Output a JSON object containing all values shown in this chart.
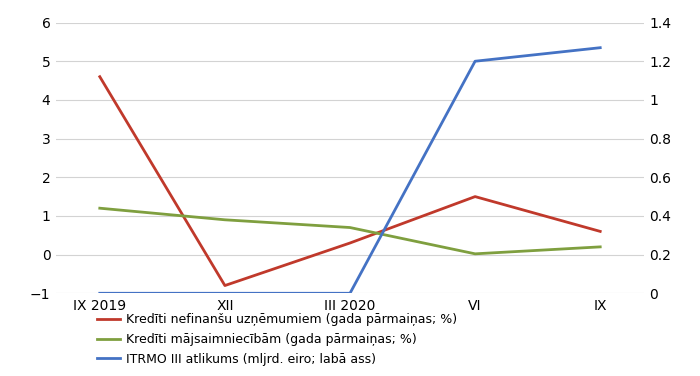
{
  "x_labels": [
    "IX 2019",
    "XII",
    "III 2020",
    "VI",
    "IX"
  ],
  "x_positions": [
    0,
    1,
    2,
    3,
    4
  ],
  "red_y": [
    4.6,
    -0.8,
    0.3,
    1.5,
    0.6
  ],
  "green_y": [
    1.2,
    0.9,
    0.7,
    0.02,
    0.2
  ],
  "blue_y_right": [
    0.0,
    0.0,
    0.0,
    1.2,
    1.27
  ],
  "red_color": "#c0392b",
  "green_color": "#7f9f3f",
  "blue_color": "#4472c4",
  "left_ylim": [
    -1,
    6
  ],
  "right_ylim": [
    0,
    1.4
  ],
  "left_yticks": [
    -1,
    0,
    1,
    2,
    3,
    4,
    5,
    6
  ],
  "right_ytick_vals": [
    0,
    0.2,
    0.4,
    0.6,
    0.8,
    1.0,
    1.2,
    1.4
  ],
  "right_ytick_labels": [
    "0",
    "0.2",
    "0.4",
    "0.6",
    "0.8",
    "1",
    "1.2",
    "1.4"
  ],
  "legend_red": "Kredīti nefinanšu uzņēmumiem (gada pārmaiņas; %)",
  "legend_green": "Kredīti mājsaimniecībām (gada pārmaiņas; %)",
  "legend_blue": "ITRMO III atlikums (mljrd. eiro; labā ass)",
  "line_width": 2.0,
  "background_color": "#ffffff",
  "grid_color": "#d3d3d3",
  "font_size_ticks": 10,
  "font_size_legend": 9
}
